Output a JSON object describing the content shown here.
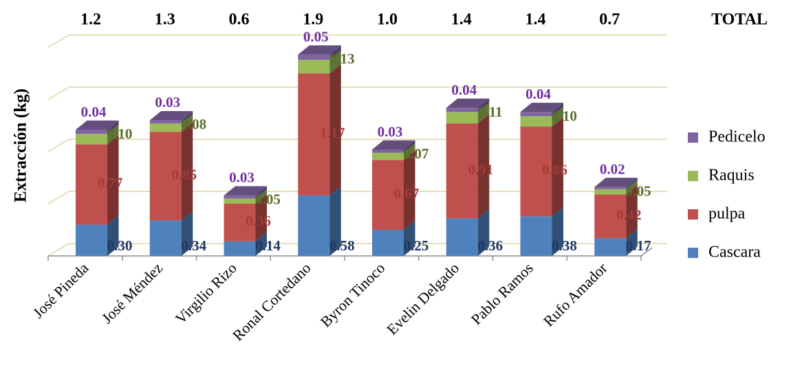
{
  "chart_data": {
    "type": "bar",
    "stacked": true,
    "three_d": true,
    "ylabel": "Extracción (kg)",
    "ylim": [
      0,
      2.5
    ],
    "grid": true,
    "legend_position": "right",
    "categories": [
      "José Pineda",
      "José Méndez",
      "Virgilio Rizo",
      "Ronal Cortedano",
      "Byron Tinoco",
      "Evelin Delgado",
      "Pablo Ramos",
      "Rufo Amador"
    ],
    "totals_header": "TOTAL",
    "totals": [
      "1.2",
      "1.3",
      "0.6",
      "1.9",
      "1.0",
      "1.4",
      "1.4",
      "0.7"
    ],
    "series": [
      {
        "name": "Cascara",
        "color": "#4f81bd",
        "values": [
          0.3,
          0.34,
          0.14,
          0.58,
          0.25,
          0.36,
          0.38,
          0.17
        ],
        "labels": [
          "0.30",
          "0.34",
          "0.14",
          "0.58",
          "0.25",
          "0.36",
          "0.38",
          "0.17"
        ],
        "label_color": "#1f3864"
      },
      {
        "name": "pulpa",
        "color": "#c0504d",
        "values": [
          0.77,
          0.85,
          0.36,
          1.17,
          0.67,
          0.91,
          0.86,
          0.42
        ],
        "labels": [
          "0.77",
          "0.85",
          "0.36",
          "1.17",
          "0.67",
          "0.91",
          "0.86",
          "0.42"
        ],
        "label_color": "#a33c37"
      },
      {
        "name": "Raquis",
        "color": "#9bbb59",
        "values": [
          0.1,
          0.08,
          0.05,
          0.13,
          0.07,
          0.11,
          0.1,
          0.05
        ],
        "labels": [
          "0.10",
          "0.08",
          "0.05",
          "0.13",
          "0.07",
          "0.11",
          "0.10",
          "0.05"
        ],
        "label_color": "#5a6e2c"
      },
      {
        "name": "Pedicelo",
        "color": "#8064a2",
        "values": [
          0.04,
          0.03,
          0.03,
          0.05,
          0.03,
          0.04,
          0.04,
          0.02
        ],
        "labels": [
          "0.04",
          "0.03",
          "0.03",
          "0.05",
          "0.03",
          "0.04",
          "0.04",
          "0.02"
        ],
        "label_color": "#7030a0"
      }
    ]
  }
}
